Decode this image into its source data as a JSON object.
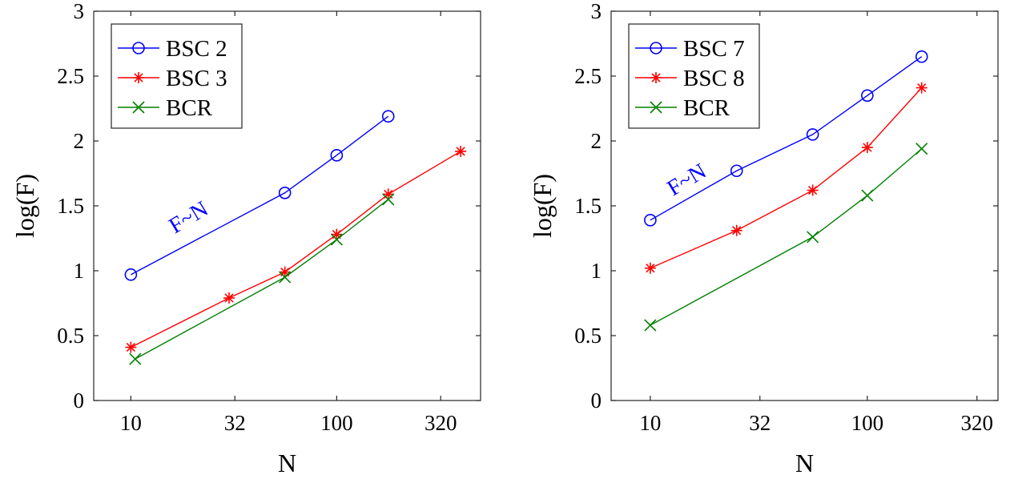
{
  "colors": {
    "blue": "#0000ff",
    "red": "#ff0000",
    "green": "#008000"
  },
  "chart_data": [
    {
      "type": "line",
      "xlabel": "N",
      "ylabel": "log(F)",
      "xscale": "log",
      "xlim": [
        6.6,
        500
      ],
      "ylim": [
        0,
        3
      ],
      "xticks": [
        10,
        32,
        100,
        320
      ],
      "xtick_labels": [
        "10",
        "32",
        "100",
        "320"
      ],
      "yticks": [
        0,
        0.5,
        1,
        1.5,
        2,
        2.5,
        3
      ],
      "ytick_labels": [
        "0",
        "0.5",
        "1",
        "1.5",
        "2",
        "2.5",
        "3"
      ],
      "grid": false,
      "legend_position": "top-left",
      "annotation": {
        "text": "F~N",
        "color": "#0000ff"
      },
      "series": [
        {
          "name": "BSC 2",
          "color": "#0000ff",
          "marker": "circle",
          "x": [
            10,
            56,
            100,
            178
          ],
          "y": [
            0.97,
            1.6,
            1.89,
            2.19
          ]
        },
        {
          "name": "BSC 3",
          "color": "#ff0000",
          "marker": "asterisk",
          "x": [
            10,
            30,
            56,
            100,
            178,
            400
          ],
          "y": [
            0.41,
            0.79,
            0.99,
            1.28,
            1.59,
            1.92
          ]
        },
        {
          "name": "BCR",
          "color": "#008000",
          "marker": "cross",
          "x": [
            10.5,
            56,
            100,
            178
          ],
          "y": [
            0.32,
            0.95,
            1.24,
            1.55
          ]
        }
      ]
    },
    {
      "type": "line",
      "xlabel": "N",
      "ylabel": "log(F)",
      "xscale": "log",
      "xlim": [
        6.6,
        400
      ],
      "ylim": [
        0,
        3
      ],
      "xticks": [
        10,
        32,
        100,
        320
      ],
      "xtick_labels": [
        "10",
        "32",
        "100",
        "320"
      ],
      "yticks": [
        0,
        0.5,
        1,
        1.5,
        2,
        2.5,
        3
      ],
      "ytick_labels": [
        "0",
        "0.5",
        "1",
        "1.5",
        "2",
        "2.5",
        "3"
      ],
      "grid": false,
      "legend_position": "top-left",
      "annotation": {
        "text": "F~N",
        "color": "#0000ff"
      },
      "series": [
        {
          "name": "BSC 7",
          "color": "#0000ff",
          "marker": "circle",
          "x": [
            10,
            25,
            56,
            100,
            178
          ],
          "y": [
            1.39,
            1.77,
            2.05,
            2.35,
            2.65
          ]
        },
        {
          "name": "BSC 8",
          "color": "#ff0000",
          "marker": "asterisk",
          "x": [
            10,
            25,
            56,
            100,
            178
          ],
          "y": [
            1.02,
            1.31,
            1.62,
            1.95,
            2.41
          ]
        },
        {
          "name": "BCR",
          "color": "#008000",
          "marker": "cross",
          "x": [
            10,
            56,
            100,
            178
          ],
          "y": [
            0.58,
            1.26,
            1.58,
            1.94
          ]
        }
      ]
    }
  ]
}
